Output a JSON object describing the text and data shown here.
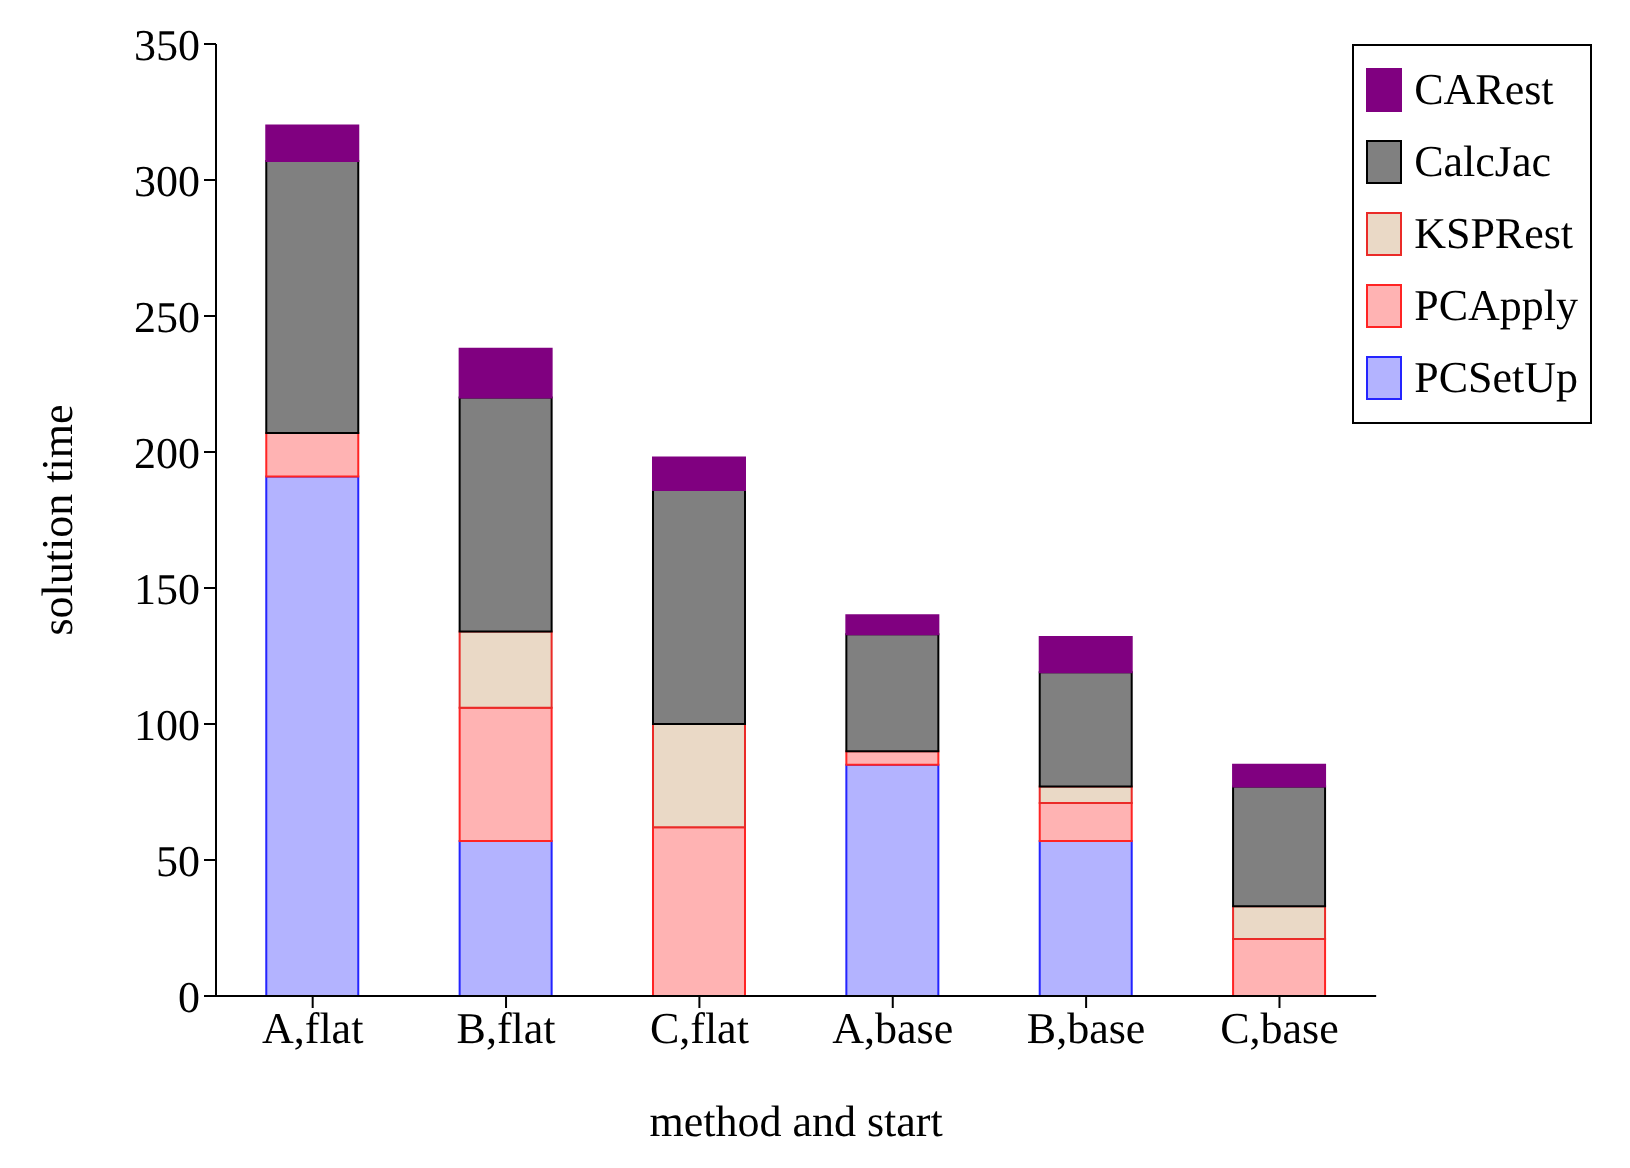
{
  "chart_data": {
    "type": "bar",
    "stacked": true,
    "xlabel": "method and start",
    "ylabel": "solution time",
    "categories": [
      "A,flat",
      "B,flat",
      "C,flat",
      "A,base",
      "B,base",
      "C,base"
    ],
    "ylim": [
      0,
      350
    ],
    "yticks": [
      0,
      50,
      100,
      150,
      200,
      250,
      300,
      350
    ],
    "grid": false,
    "legend": "top right",
    "series": [
      {
        "name": "PCSetUp",
        "color": "#b3b3ff",
        "values": [
          191,
          57,
          0,
          85,
          57,
          0
        ]
      },
      {
        "name": "PCApply",
        "color": "#ffb3b3",
        "values": [
          16,
          49,
          62,
          5,
          14,
          21
        ]
      },
      {
        "name": "KSPRest",
        "color": "#ead9c6",
        "values": [
          0,
          28,
          38,
          0,
          6,
          12
        ]
      },
      {
        "name": "CalcJac",
        "color": "#808080",
        "values": [
          100,
          86,
          86,
          43,
          42,
          44
        ]
      },
      {
        "name": "CARest",
        "color": "#800080",
        "values": [
          13,
          18,
          12,
          7,
          13,
          8
        ]
      }
    ]
  }
}
